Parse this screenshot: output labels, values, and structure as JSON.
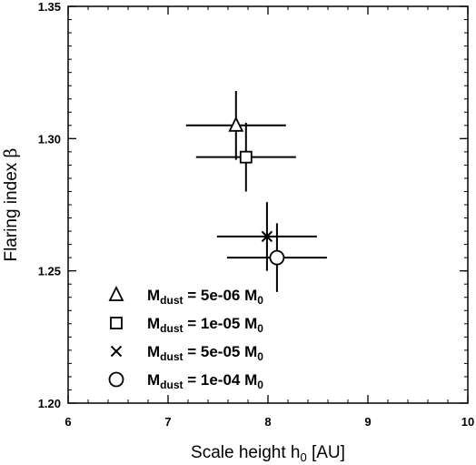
{
  "chart_data": {
    "type": "scatter",
    "xlabel": {
      "main": "Scale height h",
      "sub": "0",
      "unit": " [AU]"
    },
    "ylabel": {
      "main": "Flaring index ",
      "symbol": "β"
    },
    "xlim": [
      6,
      10
    ],
    "ylim": [
      1.2,
      1.35
    ],
    "xticks": [
      6,
      7,
      8,
      9,
      10
    ],
    "xtick_labels": [
      "6",
      "7",
      "8",
      "9",
      "10"
    ],
    "yticks": [
      1.2,
      1.25,
      1.3,
      1.35
    ],
    "ytick_labels": [
      "1.20",
      "1.25",
      "1.30",
      "1.35"
    ],
    "grid": false,
    "legend_position": "bottom-left",
    "series": [
      {
        "marker": "triangle",
        "x": 7.68,
        "y": 1.305,
        "xerr": [
          0.5,
          0.5
        ],
        "yerr": [
          0.013,
          0.013
        ],
        "label": {
          "m": "M",
          "sub": "dust",
          "eq": " = 5e-06 M",
          "sub2": "0"
        }
      },
      {
        "marker": "square",
        "x": 7.78,
        "y": 1.293,
        "xerr": [
          0.5,
          0.5
        ],
        "yerr": [
          0.013,
          0.013
        ],
        "label": {
          "m": "M",
          "sub": "dust",
          "eq": " = 1e-05 M",
          "sub2": "0"
        }
      },
      {
        "marker": "cross",
        "x": 7.99,
        "y": 1.263,
        "xerr": [
          0.5,
          0.5
        ],
        "yerr": [
          0.013,
          0.013
        ],
        "label": {
          "m": "M",
          "sub": "dust",
          "eq": " = 5e-05 M",
          "sub2": "0"
        }
      },
      {
        "marker": "circle",
        "x": 8.09,
        "y": 1.255,
        "xerr": [
          0.5,
          0.5
        ],
        "yerr": [
          0.013,
          0.013
        ],
        "label": {
          "m": "M",
          "sub": "dust",
          "eq": " = 1e-04 M",
          "sub2": "0"
        }
      }
    ]
  }
}
